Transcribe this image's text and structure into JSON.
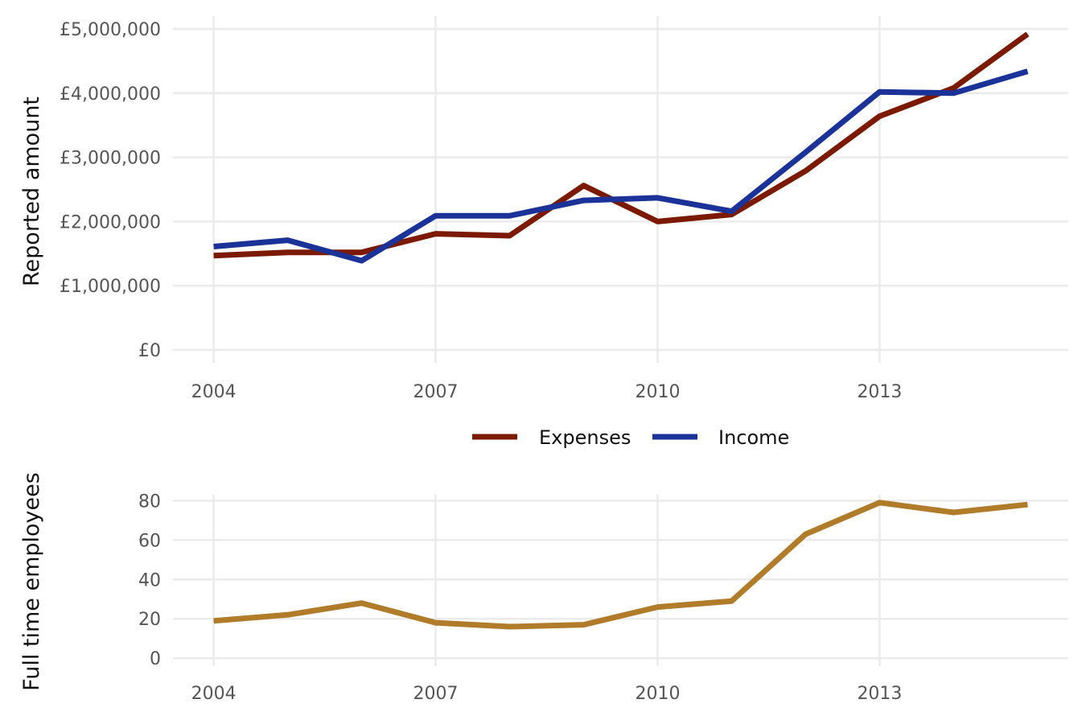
{
  "chart_data": [
    {
      "type": "line",
      "x": [
        2004,
        2005,
        2006,
        2007,
        2008,
        2009,
        2010,
        2011,
        2012,
        2013,
        2014,
        2015
      ],
      "series": [
        {
          "name": "Expenses",
          "color": "#7b1a00",
          "values": [
            1470000,
            1520000,
            1520000,
            1810000,
            1780000,
            2560000,
            2000000,
            2110000,
            2790000,
            3640000,
            4080000,
            4920000
          ]
        },
        {
          "name": "Income",
          "color": "#1b3399",
          "values": [
            1610000,
            1710000,
            1390000,
            2090000,
            2090000,
            2330000,
            2370000,
            2160000,
            3080000,
            4020000,
            4000000,
            4340000
          ]
        }
      ],
      "xticks": [
        2004,
        2007,
        2010,
        2013
      ],
      "yticks": [
        0,
        1000000,
        2000000,
        3000000,
        4000000,
        5000000
      ],
      "ytick_labels": [
        "£0",
        "£1,000,000",
        "£2,000,000",
        "£3,000,000",
        "£4,000,000",
        "£5,000,000"
      ],
      "xlim": [
        2003.45,
        2015.55
      ],
      "ylim": [
        -200000,
        5200000
      ],
      "xlabel": "",
      "ylabel": "Reported amount",
      "grid": true,
      "legend": "bottom"
    },
    {
      "type": "line",
      "x": [
        2004,
        2005,
        2006,
        2007,
        2008,
        2009,
        2010,
        2011,
        2012,
        2013,
        2014,
        2015
      ],
      "series": [
        {
          "color": "#b07c2a",
          "values": [
            19,
            22,
            28,
            18,
            16,
            17,
            26,
            29,
            63,
            79,
            74,
            78
          ]
        }
      ],
      "xticks": [
        2004,
        2007,
        2010,
        2013
      ],
      "yticks": [
        0,
        20,
        40,
        60,
        80
      ],
      "ytick_labels": [
        "0",
        "20",
        "40",
        "60",
        "80"
      ],
      "xlim": [
        2003.45,
        2015.55
      ],
      "ylim": [
        -4,
        83
      ],
      "xlabel": "",
      "ylabel": "Full time employees",
      "grid": true
    }
  ]
}
